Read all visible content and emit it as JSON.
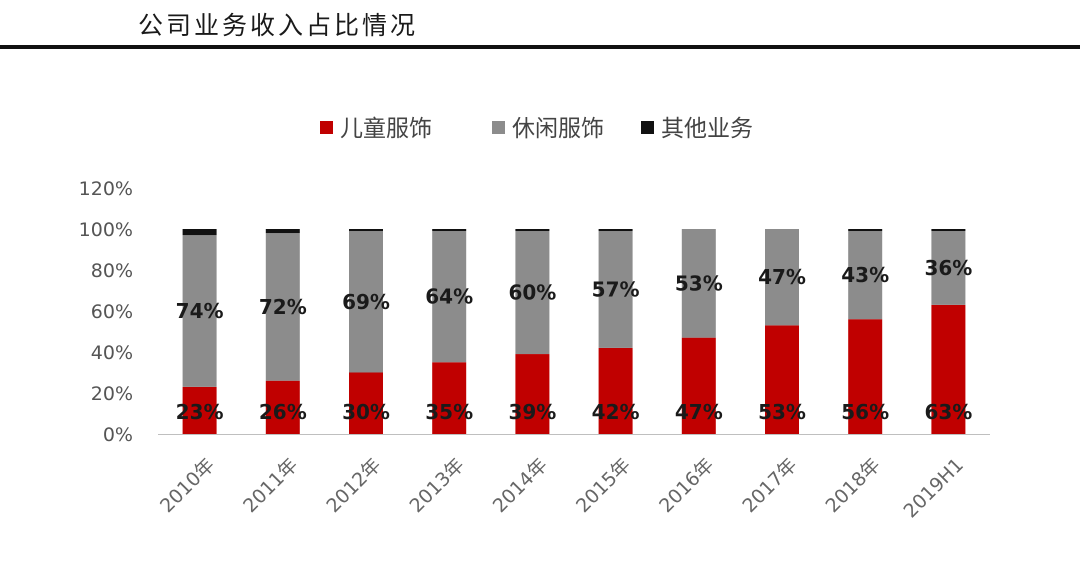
{
  "page_title": "公司业务收入占比情况",
  "chart_data": {
    "type": "bar",
    "stacked": true,
    "categories": [
      "2010年",
      "2011年",
      "2012年",
      "2013年",
      "2014年",
      "2015年",
      "2016年",
      "2017年",
      "2018年",
      "2019H1"
    ],
    "series": [
      {
        "name": "儿童服饰",
        "color": "#c00000",
        "values": [
          23,
          26,
          30,
          35,
          39,
          42,
          47,
          53,
          56,
          63
        ],
        "labels": [
          "23%",
          "26%",
          "30%",
          "35%",
          "39%",
          "42%",
          "47%",
          "53%",
          "56%",
          "63%"
        ]
      },
      {
        "name": "休闲服饰",
        "color": "#8c8c8c",
        "values": [
          74,
          72,
          69,
          64,
          60,
          57,
          53,
          47,
          43,
          36
        ],
        "labels": [
          "74%",
          "72%",
          "69%",
          "64%",
          "60%",
          "57%",
          "53%",
          "47%",
          "43%",
          "36%"
        ]
      },
      {
        "name": "其他业务",
        "color": "#111111",
        "values": [
          3,
          2,
          1,
          1,
          1,
          1,
          0,
          0,
          1,
          1
        ]
      }
    ],
    "y_ticks": [
      "0%",
      "20%",
      "40%",
      "60%",
      "80%",
      "100%",
      "120%"
    ],
    "ylim": [
      0,
      120
    ],
    "legend_position": "top-center",
    "grid": false
  }
}
